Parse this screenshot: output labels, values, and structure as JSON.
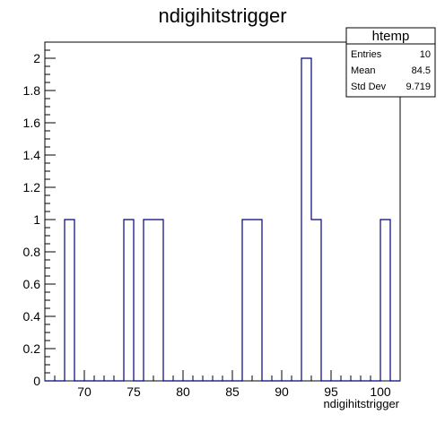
{
  "chart_data": {
    "type": "histogram",
    "title": "ndigihitstrigger",
    "xlabel": "ndigihitstrigger",
    "ylabel": "",
    "xlim": [
      66,
      102
    ],
    "ylim": [
      0,
      2.1
    ],
    "bin_width": 1,
    "bins": [
      {
        "x": 68,
        "count": 1
      },
      {
        "x": 74,
        "count": 1
      },
      {
        "x": 76,
        "count": 1
      },
      {
        "x": 77,
        "count": 1
      },
      {
        "x": 86,
        "count": 1
      },
      {
        "x": 87,
        "count": 1
      },
      {
        "x": 92,
        "count": 2
      },
      {
        "x": 93,
        "count": 1
      },
      {
        "x": 100,
        "count": 1
      }
    ],
    "x_ticks": [
      "70",
      "75",
      "80",
      "85",
      "90",
      "95",
      "100"
    ],
    "y_ticks": [
      "0",
      "0.2",
      "0.4",
      "0.6",
      "0.8",
      "1",
      "1.2",
      "1.4",
      "1.6",
      "1.8",
      "2"
    ],
    "line_color": "#000080",
    "stats_box": {
      "name": "htemp",
      "rows": [
        {
          "label": "Entries",
          "value": "10"
        },
        {
          "label": "Mean",
          "value": "84.5"
        },
        {
          "label": "Std Dev",
          "value": "9.719"
        }
      ]
    }
  }
}
